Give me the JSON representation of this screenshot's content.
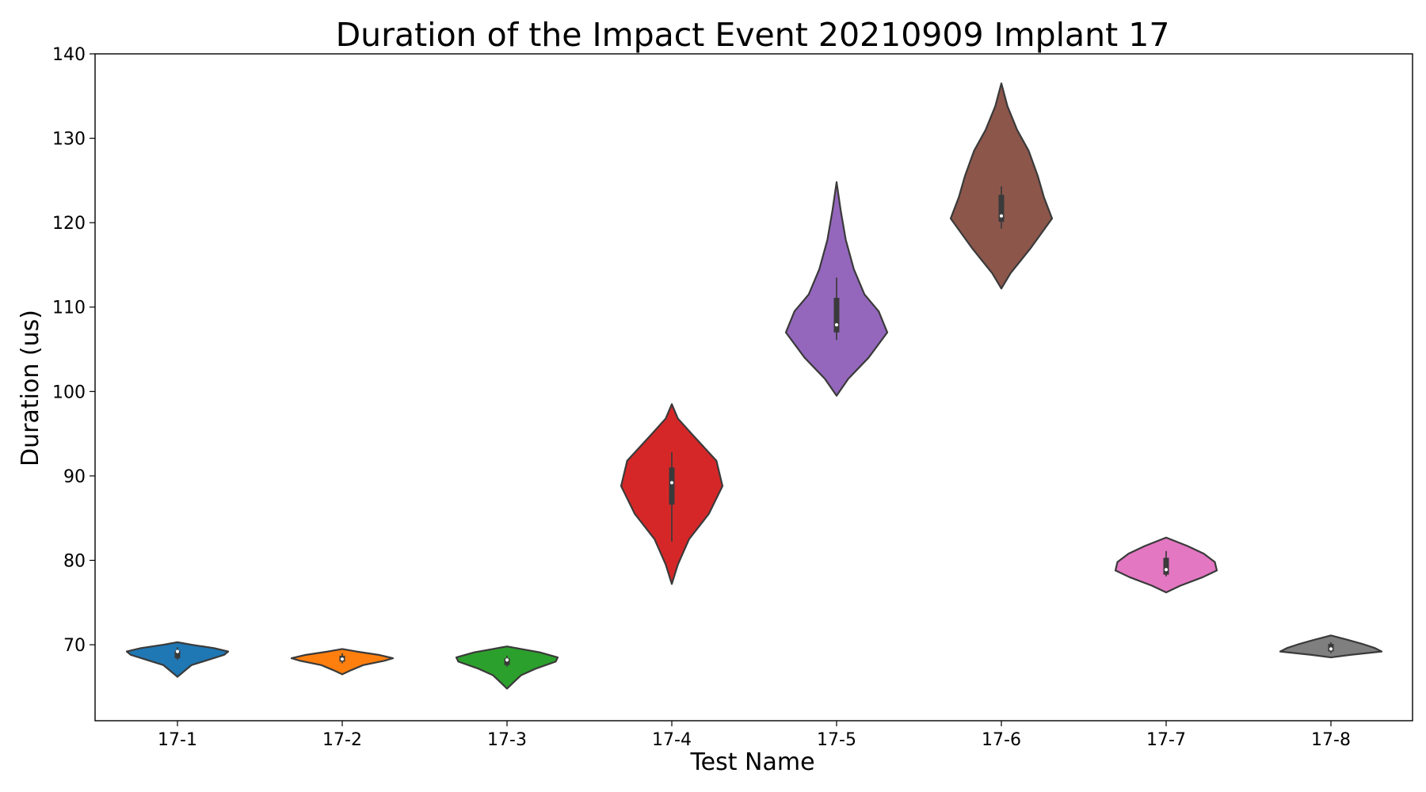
{
  "chart_data": {
    "type": "violin",
    "title": "Duration of the Impact Event 20210909 Implant 17",
    "xlabel": "Test Name",
    "ylabel": "Duration (us)",
    "ylim": [
      61,
      140
    ],
    "yticks": [
      70,
      80,
      90,
      100,
      110,
      120,
      130,
      140
    ],
    "categories": [
      "17-1",
      "17-2",
      "17-3",
      "17-4",
      "17-5",
      "17-6",
      "17-7",
      "17-8"
    ],
    "series": [
      {
        "category": "17-1",
        "color": "#1f77b4",
        "median": 69.2,
        "q1": 68.4,
        "q3": 69.3,
        "whisker_low": 68.2,
        "whisker_high": 69.7,
        "profile": [
          [
            66.2,
            0.0
          ],
          [
            66.8,
            0.12
          ],
          [
            67.6,
            0.28
          ],
          [
            68.1,
            0.55
          ],
          [
            68.8,
            0.92
          ],
          [
            69.2,
            1.0
          ],
          [
            69.6,
            0.72
          ],
          [
            70.0,
            0.28
          ],
          [
            70.3,
            0.0
          ]
        ]
      },
      {
        "category": "17-2",
        "color": "#ff7f0e",
        "median": 68.3,
        "q1": 68.0,
        "q3": 68.7,
        "whisker_low": 67.8,
        "whisker_high": 69.0,
        "profile": [
          [
            66.5,
            0.0
          ],
          [
            67.0,
            0.18
          ],
          [
            67.6,
            0.42
          ],
          [
            68.1,
            0.83
          ],
          [
            68.4,
            1.0
          ],
          [
            68.8,
            0.72
          ],
          [
            69.2,
            0.28
          ],
          [
            69.5,
            0.0
          ]
        ]
      },
      {
        "category": "17-3",
        "color": "#2ca02c",
        "median": 68.2,
        "q1": 67.6,
        "q3": 68.4,
        "whisker_low": 67.4,
        "whisker_high": 68.7,
        "profile": [
          [
            64.8,
            0.0
          ],
          [
            65.5,
            0.12
          ],
          [
            66.4,
            0.28
          ],
          [
            67.2,
            0.58
          ],
          [
            68.0,
            0.96
          ],
          [
            68.5,
            1.0
          ],
          [
            69.1,
            0.65
          ],
          [
            69.5,
            0.28
          ],
          [
            69.8,
            0.0
          ]
        ]
      },
      {
        "category": "17-4",
        "color": "#d62728",
        "median": 89.2,
        "q1": 86.6,
        "q3": 91.0,
        "whisker_low": 82.2,
        "whisker_high": 92.8,
        "profile": [
          [
            77.2,
            0.0
          ],
          [
            79.5,
            0.12
          ],
          [
            82.5,
            0.34
          ],
          [
            85.5,
            0.73
          ],
          [
            88.8,
            1.0
          ],
          [
            91.8,
            0.88
          ],
          [
            94.8,
            0.42
          ],
          [
            96.8,
            0.12
          ],
          [
            98.5,
            0.0
          ]
        ]
      },
      {
        "category": "17-5",
        "color": "#9467bd",
        "median": 107.9,
        "q1": 107.0,
        "q3": 111.1,
        "whisker_low": 106.1,
        "whisker_high": 113.5,
        "profile": [
          [
            99.5,
            0.0
          ],
          [
            101.5,
            0.23
          ],
          [
            104.0,
            0.63
          ],
          [
            107.0,
            1.0
          ],
          [
            109.5,
            0.83
          ],
          [
            111.5,
            0.55
          ],
          [
            114.5,
            0.34
          ],
          [
            118.0,
            0.18
          ],
          [
            121.5,
            0.08
          ],
          [
            124.8,
            0.0
          ]
        ]
      },
      {
        "category": "17-6",
        "color": "#8c564b",
        "median": 120.8,
        "q1": 120.1,
        "q3": 123.3,
        "whisker_low": 119.3,
        "whisker_high": 124.3,
        "profile": [
          [
            112.2,
            0.0
          ],
          [
            114.0,
            0.18
          ],
          [
            117.0,
            0.58
          ],
          [
            120.5,
            1.0
          ],
          [
            123.0,
            0.84
          ],
          [
            125.5,
            0.72
          ],
          [
            128.5,
            0.54
          ],
          [
            131.0,
            0.31
          ],
          [
            133.8,
            0.12
          ],
          [
            136.5,
            0.0
          ]
        ]
      },
      {
        "category": "17-7",
        "color": "#e377c2",
        "median": 78.9,
        "q1": 78.3,
        "q3": 80.3,
        "whisker_low": 78.1,
        "whisker_high": 81.1,
        "profile": [
          [
            76.2,
            0.0
          ],
          [
            77.0,
            0.28
          ],
          [
            78.0,
            0.72
          ],
          [
            78.8,
            1.0
          ],
          [
            79.8,
            0.96
          ],
          [
            80.8,
            0.74
          ],
          [
            81.7,
            0.42
          ],
          [
            82.7,
            0.0
          ]
        ]
      },
      {
        "category": "17-8",
        "color": "#7f7f7f",
        "median": 69.5,
        "q1": 69.2,
        "q3": 70.1,
        "whisker_low": 69.0,
        "whisker_high": 70.3,
        "profile": [
          [
            68.5,
            0.0
          ],
          [
            68.8,
            0.38
          ],
          [
            69.2,
            1.0
          ],
          [
            69.6,
            0.87
          ],
          [
            70.1,
            0.62
          ],
          [
            70.6,
            0.32
          ],
          [
            71.1,
            0.0
          ]
        ]
      }
    ]
  }
}
